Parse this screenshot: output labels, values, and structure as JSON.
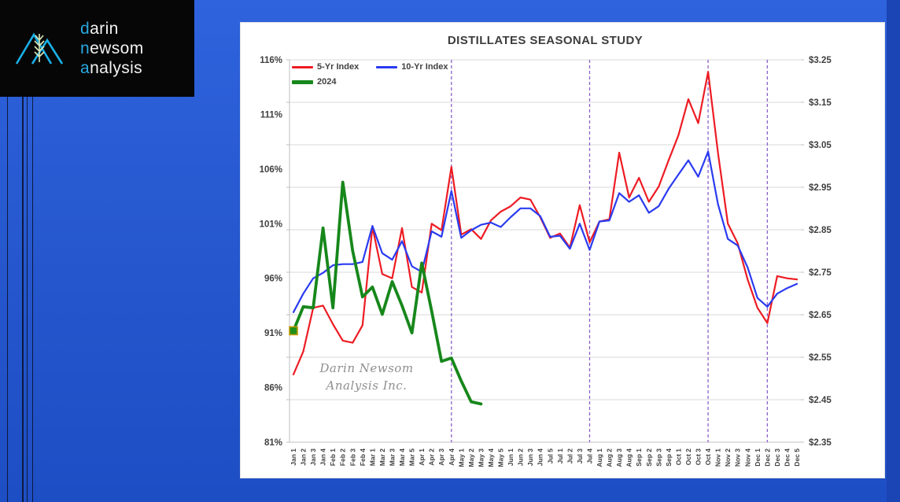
{
  "logo": {
    "line1": "darin",
    "line2": "newsom",
    "line3": "analysis",
    "line1_accent": "d",
    "line1_rest": "arin",
    "line2_accent": "n",
    "line2_rest": "ewsom",
    "line3_accent": "a",
    "line3_rest": "nalysis",
    "accent_color": "#29a8e0",
    "icon": "mountains-wheat-icon"
  },
  "chart": {
    "title": "DISTILLATES SEASONAL STUDY",
    "watermark_line1": "Darin Newsom",
    "watermark_line2": "Analysis Inc.",
    "legend": [
      {
        "label": "5-Yr Index",
        "color": "#ed1c24",
        "thickness": "thin"
      },
      {
        "label": "10-Yr Index",
        "color": "#2a3bf0",
        "thickness": "thin"
      },
      {
        "label": "2024",
        "color": "#17871b",
        "thickness": "thick"
      }
    ]
  },
  "chart_data": {
    "type": "line",
    "title": "DISTILLATES SEASONAL STUDY",
    "grid": "horizontal gridlines at right-axis ticks",
    "legend_position": "top-left",
    "categories": [
      "Jan 1",
      "Jan 2",
      "Jan 3",
      "Jan 4",
      "Feb 1",
      "Feb 2",
      "Feb 3",
      "Feb 4",
      "Mar 1",
      "Mar 2",
      "Mar 3",
      "Mar 4",
      "Mar 5",
      "Apr 1",
      "Apr 2",
      "Apr 3",
      "Apr 4",
      "May 1",
      "May 2",
      "May 3",
      "May 4",
      "May 5",
      "Jun 1",
      "Jun 2",
      "Jun 3",
      "Jun 4",
      "Jul 5",
      "Jul 1",
      "Jul 2",
      "Jul 3",
      "Jul 4",
      "Aug 1",
      "Aug 2",
      "Aug 3",
      "Aug 4",
      "Sep 1",
      "Sep 2",
      "Sep 3",
      "Sep 4",
      "Oct 1",
      "Oct 2",
      "Oct 3",
      "Oct 4",
      "Nov 1",
      "Nov 2",
      "Nov 3",
      "Nov 4",
      "Dec 1",
      "Dec 2",
      "Dec 3",
      "Dec 4",
      "Dec 5"
    ],
    "left_axis": {
      "unit": "%",
      "min": 81,
      "max": 116,
      "tick_step": 5,
      "labels": [
        "116%",
        "111%",
        "106%",
        "101%",
        "96%",
        "91%",
        "86%",
        "81%"
      ]
    },
    "right_axis": {
      "unit": "$",
      "min": 2.35,
      "max": 3.25,
      "tick_step": 0.1,
      "labels": [
        "$3.25",
        "$3.15",
        "$3.05",
        "$2.95",
        "$2.85",
        "$2.75",
        "$2.65",
        "$2.55",
        "$2.45",
        "$2.35"
      ]
    },
    "vertical_markers": {
      "color": "#8c62c8",
      "style": "dashed",
      "at": [
        "Apr 4",
        "Jul 4",
        "Oct 4",
        "Dec 2"
      ]
    },
    "series": [
      {
        "name": "5-Yr Index",
        "color": "#ed1c24",
        "width": 2.2,
        "axis": "left",
        "values": [
          87.2,
          89.3,
          93.3,
          93.5,
          91.8,
          90.3,
          90.1,
          91.7,
          100.7,
          96.4,
          96.0,
          100.6,
          95.2,
          94.7,
          101.0,
          100.4,
          106.2,
          100.0,
          100.5,
          99.6,
          101.3,
          102.1,
          102.6,
          103.4,
          103.2,
          101.6,
          99.7,
          100.1,
          98.8,
          102.7,
          99.3,
          101.2,
          101.4,
          107.5,
          103.4,
          105.2,
          103.0,
          104.4,
          106.8,
          109.1,
          112.4,
          110.2,
          114.9,
          107.5,
          101.0,
          99.2,
          95.9,
          93.3,
          91.9,
          96.2,
          96.0,
          95.9
        ]
      },
      {
        "name": "10-Yr Index",
        "color": "#2a3bf0",
        "width": 2.2,
        "axis": "left",
        "values": [
          92.9,
          94.6,
          96.0,
          96.5,
          97.2,
          97.3,
          97.3,
          97.5,
          100.8,
          98.3,
          97.7,
          99.4,
          97.1,
          96.6,
          100.3,
          99.8,
          104.0,
          99.7,
          100.4,
          100.9,
          101.1,
          100.7,
          101.6,
          102.4,
          102.4,
          101.7,
          99.8,
          99.9,
          98.7,
          101.0,
          98.6,
          101.2,
          101.3,
          103.8,
          103.0,
          103.6,
          102.0,
          102.6,
          104.2,
          105.5,
          106.8,
          105.3,
          107.6,
          102.8,
          99.6,
          99.0,
          97.0,
          94.2,
          93.4,
          94.6,
          95.1,
          95.5
        ]
      },
      {
        "name": "2024",
        "color": "#17871b",
        "width": 3.8,
        "axis": "left",
        "start_marker": {
          "shape": "square",
          "fill": "#1f8f1b",
          "border": "#c09a00"
        },
        "values": [
          91.2,
          93.4,
          93.3,
          100.6,
          93.3,
          104.8,
          98.5,
          94.3,
          95.2,
          92.7,
          95.7,
          93.5,
          91.0,
          97.4,
          93.0,
          88.4,
          88.7,
          86.6,
          84.7,
          84.5,
          null,
          null,
          null,
          null,
          null,
          null,
          null,
          null,
          null,
          null,
          null,
          null,
          null,
          null,
          null,
          null,
          null,
          null,
          null,
          null,
          null,
          null,
          null,
          null,
          null,
          null,
          null,
          null,
          null,
          null,
          null,
          null
        ]
      }
    ]
  }
}
